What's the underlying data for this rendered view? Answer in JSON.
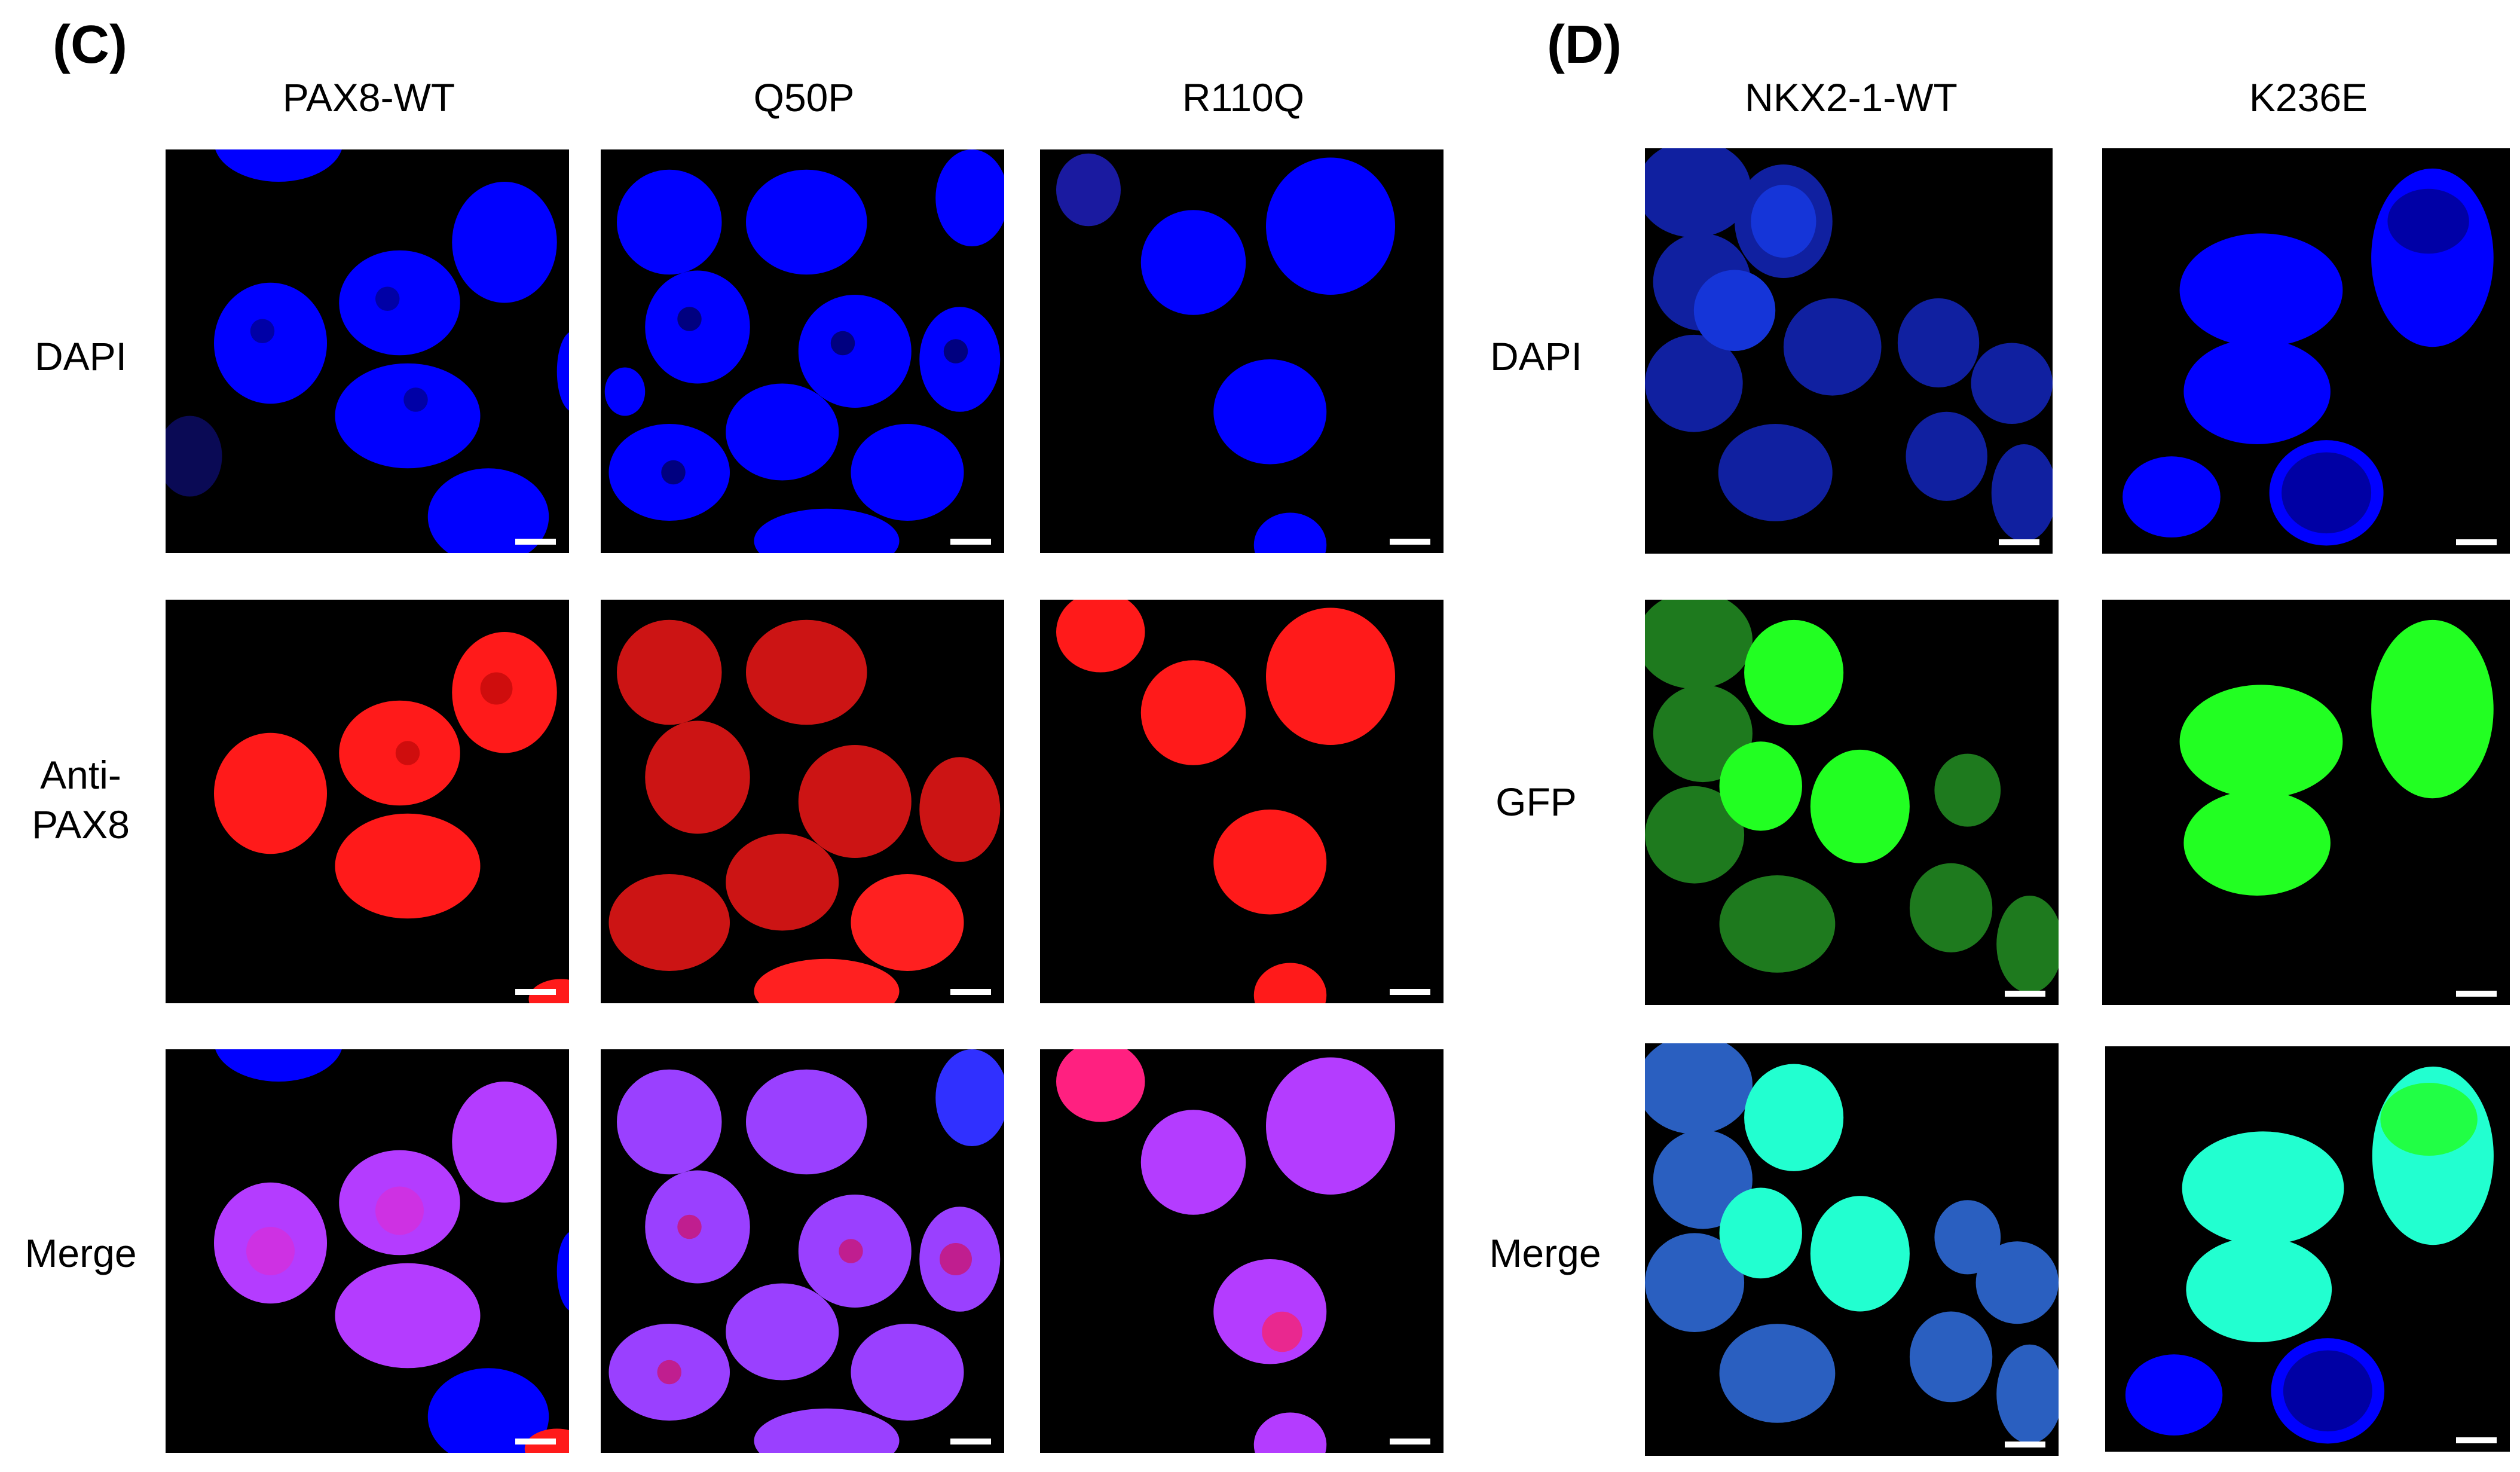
{
  "panels": [
    {
      "label": "(C)",
      "columns": [
        "PAX8-WT",
        "Q50P",
        "R110Q"
      ],
      "rows": [
        "DAPI",
        "Anti-\nPAX8",
        "Merge"
      ]
    },
    {
      "label": "(D)",
      "columns": [
        "NKX2-1-WT",
        "K236E"
      ],
      "rows": [
        "DAPI",
        "GFP",
        "Merge"
      ]
    }
  ],
  "colors": {
    "dapi": "#0000ff",
    "pax8": "#ff1a1a",
    "merge_c": "#b43cff",
    "gfp_bright": "#22ff22",
    "gfp_dim": "#1e7a1e",
    "merge_d_bright": "#22ffd0",
    "merge_d_dim": "#2a5fc0",
    "background": "#000000"
  }
}
